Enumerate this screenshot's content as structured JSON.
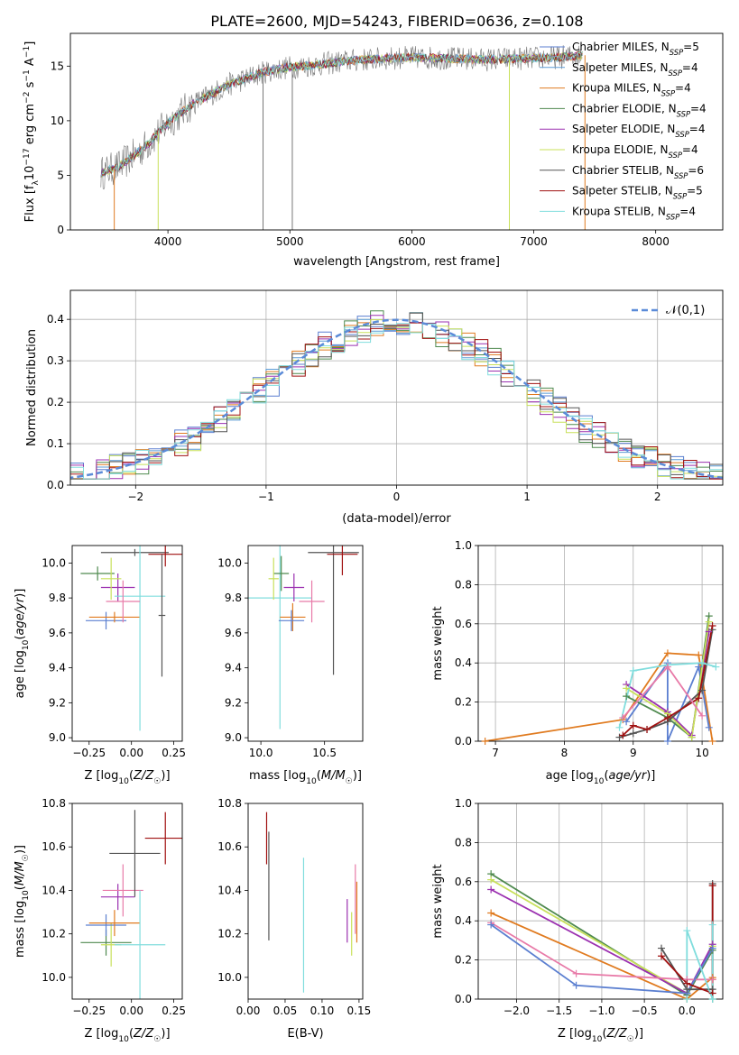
{
  "title": "PLATE=2600, MJD=54243, FIBERID=0636, z=0.108",
  "colors": {
    "Chabrier MILES": "#5b7fd0",
    "Salpeter MILES": "#5b9bd5",
    "Kroupa MILES": "#e07b20",
    "Chabrier ELODIE": "#4f8a4f",
    "Salpeter ELODIE": "#9b30b0",
    "Kroupa ELODIE": "#c8e05a",
    "Chabrier STELIB": "#555555",
    "Salpeter STELIB": "#a01010",
    "Kroupa STELIB": "#80dddd",
    "pink": "#e87aa8",
    "gaussian": "#5b8bd8"
  },
  "chart_data": [
    {
      "type": "line",
      "panel": "spectrum",
      "xlabel": "wavelength [Angstrom, rest frame]",
      "ylabel": "Flux [f_λ10^-17 erg cm^-2 s^-1 A^-1]",
      "xlim": [
        3200,
        8550
      ],
      "ylim": [
        0,
        18
      ],
      "xticks": [
        "4000",
        "5000",
        "6000",
        "7000",
        "8000"
      ],
      "yticks": [
        "0",
        "5",
        "10",
        "15"
      ],
      "legend": [
        {
          "name": "Chabrier MILES",
          "n": "5"
        },
        {
          "name": "Salpeter MILES",
          "n": "4"
        },
        {
          "name": "Kroupa MILES",
          "n": "4"
        },
        {
          "name": "Chabrier ELODIE",
          "n": "4"
        },
        {
          "name": "Salpeter ELODIE",
          "n": "4"
        },
        {
          "name": "Kroupa ELODIE",
          "n": "4"
        },
        {
          "name": "Chabrier STELIB",
          "n": "6"
        },
        {
          "name": "Salpeter STELIB",
          "n": "5"
        },
        {
          "name": "Kroupa STELIB",
          "n": "4"
        }
      ],
      "legend_position": "upper right",
      "continuum": {
        "x": [
          3450,
          3600,
          3800,
          4000,
          4200,
          4500,
          4800,
          5000,
          5200,
          5500,
          5800,
          6000,
          6300,
          6600,
          6900,
          7200,
          7400
        ],
        "y": [
          5.2,
          5.8,
          7.5,
          9.8,
          11.5,
          13.3,
          14.5,
          14.9,
          15.1,
          15.5,
          15.7,
          15.8,
          15.7,
          15.6,
          15.7,
          15.8,
          16.0
        ]
      }
    },
    {
      "type": "line",
      "panel": "residual histogram",
      "xlabel": "(data-model)/error",
      "ylabel": "Normed distribution",
      "xlim": [
        -2.5,
        2.5
      ],
      "ylim": [
        0,
        0.47
      ],
      "xticks": [
        "−2",
        "−1",
        "0",
        "1",
        "2"
      ],
      "yticks": [
        "0.0",
        "0.1",
        "0.2",
        "0.3",
        "0.4"
      ],
      "legend": "𝒩(0,1)",
      "grid": true
    },
    {
      "type": "scatter",
      "panel": "age vs Z",
      "xlabel": "Z [log10(Z/Z☉)]",
      "ylabel": "age  [log10(age/yr)]",
      "xlim": [
        -0.35,
        0.3
      ],
      "ylim": [
        8.98,
        10.1
      ],
      "xticks": [
        "−0.25",
        "0.00",
        "0.25"
      ],
      "yticks": [
        "9.0",
        "9.2",
        "9.4",
        "9.6",
        "9.8",
        "10.0"
      ],
      "points": [
        {
          "s": "Chabrier MILES",
          "x": -0.15,
          "xerr": 0.12,
          "y": 9.67,
          "yerr": 0.05
        },
        {
          "s": "Kroupa MILES",
          "x": -0.1,
          "xerr": 0.15,
          "y": 9.69,
          "yerr": 0.03
        },
        {
          "s": "Chabrier ELODIE",
          "x": -0.2,
          "xerr": 0.1,
          "y": 9.94,
          "yerr": 0.04
        },
        {
          "s": "Salpeter ELODIE",
          "x": -0.08,
          "xerr": 0.1,
          "y": 9.86,
          "yerr": 0.08
        },
        {
          "s": "Kroupa ELODIE",
          "x": -0.12,
          "xerr": 0.06,
          "y": 9.91,
          "yerr": 0.12
        },
        {
          "s": "Chabrier STELIB",
          "x": 0.02,
          "xerr": 0.2,
          "y": 10.06,
          "yerr": 0.02
        },
        {
          "s": "Salpeter STELIB",
          "x": 0.2,
          "xerr": 0.1,
          "y": 10.05,
          "yerr": 0.07
        },
        {
          "s": "Kroupa STELIB",
          "x": 0.05,
          "xerr": 0.15,
          "y": 9.81,
          "yerr": 0.77
        },
        {
          "s": "pink",
          "x": -0.05,
          "xerr": 0.1,
          "y": 9.78,
          "yerr": 0.12
        },
        {
          "s": "Chabrier STELIB",
          "x": 0.18,
          "xerr": 0.02,
          "y": 9.7,
          "yerr": 0.35
        }
      ]
    },
    {
      "type": "scatter",
      "panel": "age vs mass",
      "xlabel": "mass [log10(M/M☉)]",
      "xlim": [
        9.9,
        10.8
      ],
      "ylim": [
        8.98,
        10.1
      ],
      "xticks": [
        "10.0",
        "10.5"
      ],
      "yticks": [
        "9.0",
        "9.2",
        "9.4",
        "9.6",
        "9.8",
        "10.0"
      ],
      "points": [
        {
          "s": "Kroupa STELIB",
          "x": 10.15,
          "xerr": 0.25,
          "y": 9.8,
          "yerr": 0.75
        },
        {
          "s": "Chabrier ELODIE",
          "x": 10.16,
          "xerr": 0.06,
          "y": 9.94,
          "yerr": 0.1
        },
        {
          "s": "Kroupa ELODIE",
          "x": 10.1,
          "xerr": 0.04,
          "y": 9.91,
          "yerr": 0.12
        },
        {
          "s": "Salpeter ELODIE",
          "x": 10.26,
          "xerr": 0.08,
          "y": 9.86,
          "yerr": 0.08
        },
        {
          "s": "Kroupa MILES",
          "x": 10.25,
          "xerr": 0.1,
          "y": 9.69,
          "yerr": 0.08
        },
        {
          "s": "Chabrier MILES",
          "x": 10.24,
          "xerr": 0.1,
          "y": 9.67,
          "yerr": 0.06
        },
        {
          "s": "pink",
          "x": 10.4,
          "xerr": 0.1,
          "y": 9.78,
          "yerr": 0.12
        },
        {
          "s": "Chabrier STELIB",
          "x": 10.57,
          "xerr": 0.2,
          "y": 10.06,
          "yerr": 0.7
        },
        {
          "s": "Salpeter STELIB",
          "x": 10.64,
          "xerr": 0.12,
          "y": 10.05,
          "yerr": 0.12
        }
      ]
    },
    {
      "type": "line",
      "panel": "mass weight vs age",
      "xlabel": "age  [log10(age/yr)]",
      "ylabel": "mass weight",
      "xlim": [
        6.75,
        10.3
      ],
      "ylim": [
        0,
        1.0
      ],
      "xticks": [
        "7",
        "8",
        "9",
        "10"
      ],
      "yticks": [
        "0.0",
        "0.2",
        "0.4",
        "0.6",
        "0.8",
        "1.0"
      ],
      "grid": true,
      "series": [
        {
          "s": "Kroupa MILES",
          "x": [
            6.85,
            8.85,
            9.5,
            9.95,
            10.15
          ],
          "y": [
            0.0,
            0.11,
            0.45,
            0.44,
            0.0
          ]
        },
        {
          "s": "Chabrier MILES",
          "x": [
            8.9,
            9.5,
            9.5,
            9.95,
            10.1
          ],
          "y": [
            0.1,
            0.4,
            0.0,
            0.38,
            0.07
          ]
        },
        {
          "s": "Chabrier ELODIE",
          "x": [
            8.9,
            9.5,
            9.85,
            10.1
          ],
          "y": [
            0.23,
            0.12,
            0.02,
            0.64
          ]
        },
        {
          "s": "Salpeter ELODIE",
          "x": [
            8.9,
            9.5,
            9.85,
            10.1
          ],
          "y": [
            0.29,
            0.15,
            0.03,
            0.56
          ]
        },
        {
          "s": "Kroupa ELODIE",
          "x": [
            8.9,
            9.5,
            9.85,
            10.1
          ],
          "y": [
            0.27,
            0.14,
            0.02,
            0.61
          ]
        },
        {
          "s": "Chabrier STELIB",
          "x": [
            8.8,
            9.0,
            9.2,
            9.5,
            10.0,
            10.15
          ],
          "y": [
            0.02,
            0.04,
            0.06,
            0.1,
            0.26,
            0.57
          ]
        },
        {
          "s": "Salpeter STELIB",
          "x": [
            8.85,
            9.0,
            9.2,
            9.5,
            9.95,
            10.15
          ],
          "y": [
            0.03,
            0.08,
            0.06,
            0.12,
            0.22,
            0.59
          ]
        },
        {
          "s": "Kroupa STELIB",
          "x": [
            8.8,
            9.0,
            9.5,
            10.0,
            10.2
          ],
          "y": [
            0.07,
            0.36,
            0.39,
            0.4,
            0.38
          ]
        },
        {
          "s": "pink",
          "x": [
            8.85,
            9.5,
            10.0
          ],
          "y": [
            0.12,
            0.38,
            0.13
          ]
        }
      ]
    },
    {
      "type": "scatter",
      "panel": "mass vs Z",
      "xlabel": "Z [log10(Z/Z☉)]",
      "ylabel": "mass [log10(M/M☉)]",
      "xlim": [
        -0.35,
        0.3
      ],
      "ylim": [
        9.9,
        10.8
      ],
      "xticks": [
        "−0.25",
        "0.00",
        "0.25"
      ],
      "yticks": [
        "10.0",
        "10.2",
        "10.4",
        "10.6",
        "10.8"
      ],
      "points": [
        {
          "s": "Chabrier ELODIE",
          "x": -0.15,
          "xerr": 0.15,
          "y": 10.16,
          "yerr": 0.06
        },
        {
          "s": "Kroupa ELODIE",
          "x": -0.12,
          "xerr": 0.06,
          "y": 10.15,
          "yerr": 0.1
        },
        {
          "s": "Chabrier MILES",
          "x": -0.15,
          "xerr": 0.12,
          "y": 10.24,
          "yerr": 0.05
        },
        {
          "s": "Kroupa MILES",
          "x": -0.1,
          "xerr": 0.15,
          "y": 10.25,
          "yerr": 0.06
        },
        {
          "s": "Salpeter ELODIE",
          "x": -0.08,
          "xerr": 0.1,
          "y": 10.37,
          "yerr": 0.06
        },
        {
          "s": "pink",
          "x": -0.05,
          "xerr": 0.12,
          "y": 10.4,
          "yerr": 0.12
        },
        {
          "s": "Kroupa STELIB",
          "x": 0.05,
          "xerr": 0.15,
          "y": 10.15,
          "yerr": 0.25
        },
        {
          "s": "Chabrier STELIB",
          "x": 0.02,
          "xerr": 0.15,
          "y": 10.57,
          "yerr": 0.2
        },
        {
          "s": "Salpeter STELIB",
          "x": 0.2,
          "xerr": 0.12,
          "y": 10.64,
          "yerr": 0.12
        }
      ]
    },
    {
      "type": "scatter",
      "panel": "mass vs E(B-V)",
      "xlabel": "E(B-V)",
      "xlim": [
        0.0,
        0.155
      ],
      "ylim": [
        9.9,
        10.8
      ],
      "xticks": [
        "0.00",
        "0.05",
        "0.10",
        "0.15"
      ],
      "yticks": [
        "10.0",
        "10.2",
        "10.4",
        "10.6",
        "10.8"
      ],
      "points": [
        {
          "s": "Salpeter STELIB",
          "x": 0.025,
          "y": 10.64,
          "yerr": 0.12
        },
        {
          "s": "Chabrier STELIB",
          "x": 0.028,
          "y": 10.42,
          "yerr": 0.25
        },
        {
          "s": "Kroupa STELIB",
          "x": 0.075,
          "y": 10.24,
          "yerr": 0.31
        },
        {
          "s": "Salpeter ELODIE",
          "x": 0.134,
          "y": 10.26,
          "yerr": 0.1
        },
        {
          "s": "Kroupa ELODIE",
          "x": 0.14,
          "y": 10.2,
          "yerr": 0.1
        },
        {
          "s": "pink",
          "x": 0.145,
          "y": 10.36,
          "yerr": 0.16
        },
        {
          "s": "Kroupa MILES",
          "x": 0.147,
          "y": 10.3,
          "yerr": 0.14
        }
      ]
    },
    {
      "type": "line",
      "panel": "mass weight vs Z",
      "xlabel": "Z [log10(Z/Z☉)]",
      "ylabel": "mass weight",
      "xlim": [
        -2.45,
        0.42
      ],
      "ylim": [
        0,
        1.0
      ],
      "xticks": [
        "−2.0",
        "−1.5",
        "−1.0",
        "−0.5",
        "0.0"
      ],
      "yticks": [
        "0.0",
        "0.2",
        "0.4",
        "0.6",
        "0.8",
        "1.0"
      ],
      "grid": true,
      "series": [
        {
          "s": "Chabrier ELODIE",
          "x": [
            -2.3,
            0.0,
            0.3,
            0.3
          ],
          "y": [
            0.64,
            0.02,
            0.25,
            0.0
          ]
        },
        {
          "s": "Kroupa ELODIE",
          "x": [
            -2.3,
            0.0,
            0.3
          ],
          "y": [
            0.61,
            0.03,
            0.27
          ]
        },
        {
          "s": "Salpeter ELODIE",
          "x": [
            -2.3,
            0.0,
            0.3
          ],
          "y": [
            0.56,
            0.03,
            0.28
          ]
        },
        {
          "s": "Kroupa MILES",
          "x": [
            -2.3,
            0.0,
            0.3,
            0.3
          ],
          "y": [
            0.44,
            0.0,
            0.11,
            0.1
          ]
        },
        {
          "s": "pink",
          "x": [
            -2.3,
            -1.3,
            0.0,
            0.3
          ],
          "y": [
            0.39,
            0.13,
            0.1,
            0.1
          ]
        },
        {
          "s": "Chabrier MILES",
          "x": [
            -2.3,
            -1.3,
            0.0,
            0.3
          ],
          "y": [
            0.38,
            0.07,
            0.03,
            0.26
          ]
        },
        {
          "s": "Chabrier STELIB",
          "x": [
            -0.3,
            0.0,
            0.3,
            0.3
          ],
          "y": [
            0.26,
            0.05,
            0.05,
            0.59
          ]
        },
        {
          "s": "Salpeter STELIB",
          "x": [
            -0.3,
            0.0,
            0.3,
            0.3
          ],
          "y": [
            0.22,
            0.08,
            0.03,
            0.58
          ]
        },
        {
          "s": "Kroupa STELIB",
          "x": [
            0.0,
            0.0,
            0.3,
            0.3
          ],
          "y": [
            0.0,
            0.35,
            0.0,
            0.38
          ]
        }
      ]
    }
  ]
}
